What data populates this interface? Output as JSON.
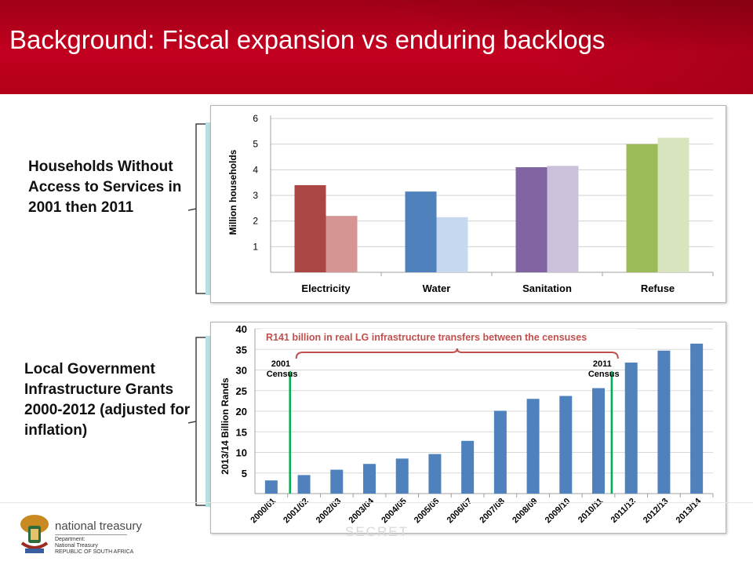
{
  "slide": {
    "title": "Background: Fiscal expansion vs enduring backlogs",
    "label_top": "Households Without Access to Services in 2001 then 2011",
    "label_bottom": "Local Government Infrastructure Grants 2000-2012 (adjusted for inflation)",
    "footer_faint": "SECRET",
    "logo": {
      "name": "national treasury",
      "sub_line1": "Department:",
      "sub_line2": "National Treasury",
      "sub_line3": "REPUBLIC OF SOUTH AFRICA"
    }
  },
  "chart_data": [
    {
      "type": "bar",
      "ylabel": "Million households",
      "xlabel": "",
      "ylim": [
        0,
        6
      ],
      "yticks": [
        "1",
        "2",
        "3",
        "4",
        "5",
        "6"
      ],
      "categories": [
        "Electricity",
        "Water",
        "Sanitation",
        "Refuse"
      ],
      "series": [
        {
          "values": [
            3.4,
            3.15,
            4.1,
            5.0
          ],
          "colors": [
            "#aa4643",
            "#4f81bd",
            "#8064a2",
            "#9bbb59"
          ]
        },
        {
          "values": [
            2.2,
            2.15,
            4.15,
            5.25
          ],
          "colors": [
            "#d59593",
            "#c6d9f1",
            "#ccc1da",
            "#d7e4bd"
          ]
        }
      ],
      "grid": true,
      "legend": "none"
    },
    {
      "type": "bar",
      "ylabel": "2013/14 Billion Rands",
      "xlabel": "",
      "ylim": [
        0,
        40
      ],
      "yticks": [
        "5",
        "10",
        "15",
        "20",
        "25",
        "30",
        "35",
        "40"
      ],
      "categories": [
        "2000/01",
        "2001/02",
        "2002/03",
        "2003/04",
        "2004/05",
        "2005/06",
        "2006/07",
        "2007/08",
        "2008/09",
        "2009/10",
        "2010/11",
        "2011/12",
        "2012/13",
        "2013/14"
      ],
      "values": [
        3.2,
        4.5,
        5.8,
        7.2,
        8.5,
        9.6,
        12.8,
        20.1,
        23.0,
        23.7,
        25.6,
        31.8,
        34.7,
        36.4
      ],
      "bar_color": "#4f81bd",
      "grid": true,
      "legend": "none",
      "annotations": {
        "bracket_text": "R141 billion in real LG infrastructure transfers between the censuses",
        "census_2001": [
          "2001",
          "Census"
        ],
        "census_2011": [
          "2011",
          "Census"
        ],
        "annotation_color": "#c0504d",
        "census_line_color": "#00b050"
      }
    }
  ]
}
